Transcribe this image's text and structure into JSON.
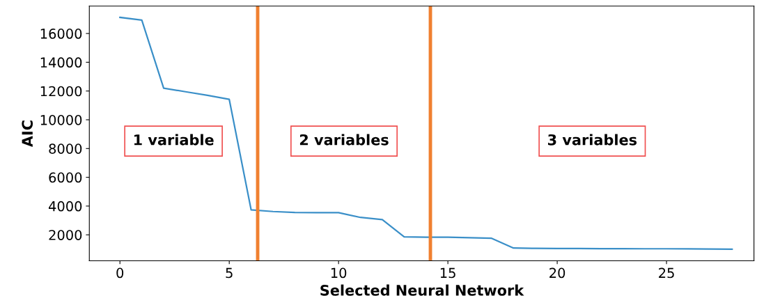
{
  "chart_data": {
    "type": "line",
    "xlabel": "Selected Neural Network",
    "ylabel": "AIC",
    "x": [
      0,
      1,
      2,
      3,
      4,
      5,
      6,
      7,
      8,
      9,
      10,
      11,
      12,
      13,
      14,
      15,
      16,
      17,
      18,
      19,
      20,
      21,
      22,
      23,
      24,
      25,
      26,
      27,
      28
    ],
    "series": [
      {
        "color": "#3a8fc8",
        "values": [
          17120,
          16930,
          12200,
          11950,
          11700,
          11420,
          3740,
          3620,
          3550,
          3540,
          3540,
          3210,
          3060,
          1860,
          1840,
          1840,
          1800,
          1760,
          1080,
          1060,
          1050,
          1050,
          1040,
          1040,
          1030,
          1030,
          1020,
          1010,
          1000
        ]
      }
    ],
    "xlim": [
      -1.4,
      29.0
    ],
    "ylim": [
      195,
      17905
    ],
    "xticks": [
      0,
      5,
      10,
      15,
      20,
      25
    ],
    "yticks": [
      2000,
      4000,
      6000,
      8000,
      10000,
      12000,
      14000,
      16000
    ],
    "ref_lines": [
      {
        "axis": "x",
        "value": 6.3,
        "color": "#f08030"
      },
      {
        "axis": "x",
        "value": 14.2,
        "color": "#f08030"
      }
    ],
    "annotations": [
      "1 variable",
      "2 variables",
      "3 variables"
    ],
    "grid": false,
    "legend": false,
    "marker": "none",
    "line_style": "solid"
  }
}
